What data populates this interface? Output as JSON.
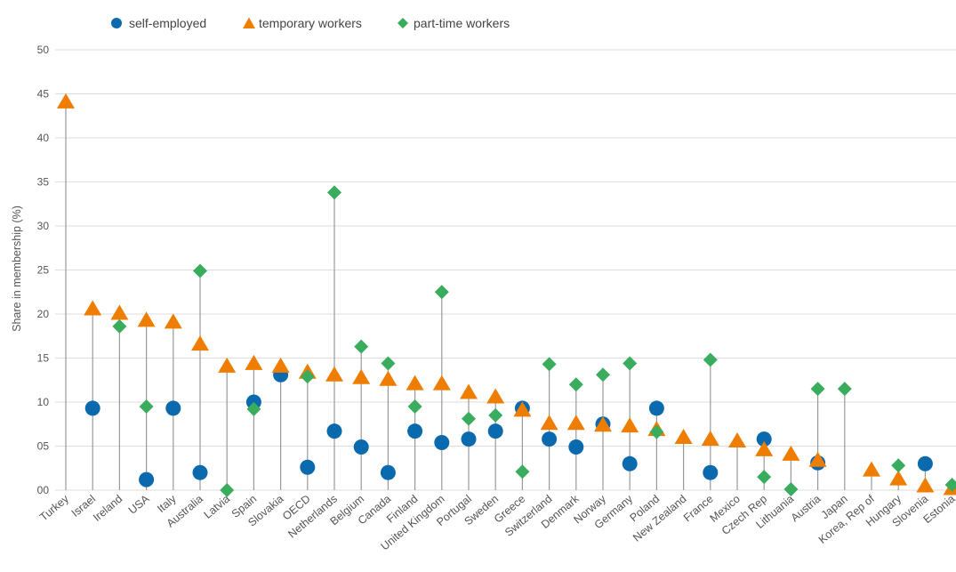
{
  "chart_data": {
    "type": "scatter",
    "title": "",
    "xlabel": "",
    "ylabel": "Share in membership (%)",
    "ylim": [
      0,
      50
    ],
    "yticks": [
      {
        "value": 0,
        "label": "00"
      },
      {
        "value": 5,
        "label": "05"
      },
      {
        "value": 10,
        "label": "10"
      },
      {
        "value": 15,
        "label": "15"
      },
      {
        "value": 20,
        "label": "20"
      },
      {
        "value": 25,
        "label": "25"
      },
      {
        "value": 30,
        "label": "30"
      },
      {
        "value": 35,
        "label": "35"
      },
      {
        "value": 40,
        "label": "40"
      },
      {
        "value": 45,
        "label": "45"
      },
      {
        "value": 50,
        "label": "50"
      }
    ],
    "grid": true,
    "legend_position": "top-left",
    "categories": [
      "Turkey",
      "Israel",
      "Ireland",
      "USA",
      "Italy",
      "Australia",
      "Latvia",
      "Spain",
      "Slovakia",
      "OECD",
      "Netherlands",
      "Belgium",
      "Canada",
      "Finland",
      "United Kingdom",
      "Portugal",
      "Sweden",
      "Greece",
      "Switzerland",
      "Denmark",
      "Norway",
      "Germany",
      "Poland",
      "New Zealand",
      "France",
      "Mexico",
      "Czech Rep",
      "Lithuania",
      "Austria",
      "Japan",
      "Korea, Rep of",
      "Hungary",
      "Slovenia",
      "Estonia"
    ],
    "series": [
      {
        "name": "self-employed",
        "marker": "circle",
        "color": "#0a6aad",
        "values": [
          null,
          9.3,
          null,
          1.2,
          9.3,
          2.0,
          null,
          10.0,
          13.1,
          2.6,
          6.7,
          4.9,
          2.0,
          6.7,
          5.4,
          5.8,
          6.7,
          9.3,
          5.8,
          4.9,
          7.5,
          3.0,
          9.3,
          null,
          2.0,
          null,
          5.8,
          null,
          3.1,
          null,
          null,
          null,
          3.0,
          null
        ]
      },
      {
        "name": "temporary workers",
        "marker": "triangle",
        "color": "#ee7d00",
        "values": [
          44.0,
          20.5,
          20.0,
          19.2,
          19.0,
          16.5,
          14.0,
          14.3,
          14.0,
          13.3,
          13.0,
          12.7,
          12.5,
          12.0,
          12.0,
          11.0,
          10.5,
          9.0,
          7.5,
          7.5,
          7.3,
          7.2,
          6.8,
          5.9,
          5.7,
          5.5,
          4.5,
          4.0,
          3.3,
          null,
          2.2,
          1.2,
          0.4,
          0.1
        ]
      },
      {
        "name": "part-time workers",
        "marker": "diamond",
        "color": "#3aac5d",
        "values": [
          null,
          null,
          18.6,
          9.5,
          null,
          24.9,
          0.0,
          9.2,
          null,
          12.9,
          33.8,
          16.3,
          14.4,
          9.5,
          22.5,
          8.1,
          8.5,
          2.1,
          14.3,
          12.0,
          13.1,
          14.4,
          6.6,
          null,
          14.8,
          null,
          1.5,
          0.1,
          11.5,
          11.5,
          null,
          2.8,
          null,
          0.6
        ]
      }
    ]
  },
  "colors": {
    "self_employed": "#0a6aad",
    "temporary_workers": "#ee7d00",
    "part_time_workers": "#3aac5d",
    "stem": "#999999",
    "grid": "#dddddd"
  }
}
